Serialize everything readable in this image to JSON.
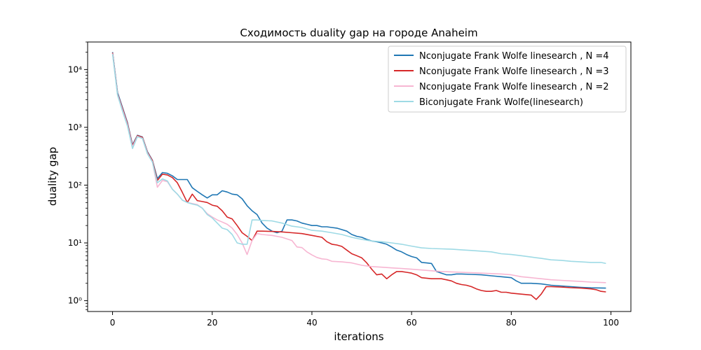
{
  "chart_data": {
    "type": "line",
    "title": "Сходимость duality gap на городе Anaheim",
    "xlabel": "iterations",
    "ylabel": "duality gap",
    "xlim": [
      -5,
      104
    ],
    "ylim": [
      0.65,
      30000
    ],
    "yscale": "log",
    "xticks": [
      0,
      20,
      40,
      60,
      80,
      100
    ],
    "yticks": [
      1,
      10,
      100,
      1000,
      10000
    ],
    "yticklabels": [
      "10⁰",
      "10¹",
      "10²",
      "10³",
      "10⁴"
    ],
    "legend_position": "top-right",
    "grid": false,
    "series": [
      {
        "name": "Nconjugate Frank Wolfe linesearch , N =4",
        "color": "#1f77b4",
        "points": [
          [
            0,
            20000
          ],
          [
            1,
            4000
          ],
          [
            2,
            2200
          ],
          [
            3,
            1200
          ],
          [
            4,
            500
          ],
          [
            5,
            730
          ],
          [
            6,
            680
          ],
          [
            7,
            380
          ],
          [
            8,
            270
          ],
          [
            9,
            130
          ],
          [
            10,
            165
          ],
          [
            11,
            160
          ],
          [
            12,
            145
          ],
          [
            13,
            125
          ],
          [
            14,
            125
          ],
          [
            15,
            125
          ],
          [
            16,
            90
          ],
          [
            17,
            78
          ],
          [
            18,
            68
          ],
          [
            19,
            60
          ],
          [
            20,
            68
          ],
          [
            21,
            68
          ],
          [
            22,
            80
          ],
          [
            23,
            76
          ],
          [
            24,
            70
          ],
          [
            25,
            68
          ],
          [
            26,
            58
          ],
          [
            27,
            44
          ],
          [
            28,
            36
          ],
          [
            29,
            31
          ],
          [
            30,
            22
          ],
          [
            31,
            18
          ],
          [
            32,
            16
          ],
          [
            33,
            15
          ],
          [
            34,
            16
          ],
          [
            35,
            25
          ],
          [
            36,
            25
          ],
          [
            37,
            24
          ],
          [
            38,
            22
          ],
          [
            39,
            21
          ],
          [
            40,
            20
          ],
          [
            41,
            20
          ],
          [
            42,
            19
          ],
          [
            43,
            19
          ],
          [
            44,
            18.5
          ],
          [
            45,
            18
          ],
          [
            46,
            17
          ],
          [
            47,
            16
          ],
          [
            48,
            14
          ],
          [
            49,
            13
          ],
          [
            50,
            12.5
          ],
          [
            51,
            11.5
          ],
          [
            52,
            10.8
          ],
          [
            53,
            10.5
          ],
          [
            54,
            10
          ],
          [
            55,
            9.5
          ],
          [
            56,
            8.5
          ],
          [
            57,
            7.5
          ],
          [
            58,
            7
          ],
          [
            59,
            6.3
          ],
          [
            60,
            5.8
          ],
          [
            61,
            5.5
          ],
          [
            62,
            4.6
          ],
          [
            63,
            4.5
          ],
          [
            64,
            4.4
          ],
          [
            65,
            3.2
          ],
          [
            66,
            3
          ],
          [
            67,
            2.8
          ],
          [
            68,
            2.8
          ],
          [
            69,
            2.9
          ],
          [
            70,
            2.9
          ],
          [
            72,
            2.85
          ],
          [
            74,
            2.8
          ],
          [
            76,
            2.7
          ],
          [
            78,
            2.6
          ],
          [
            80,
            2.5
          ],
          [
            81,
            2.2
          ],
          [
            82,
            2
          ],
          [
            84,
            2
          ],
          [
            86,
            1.95
          ],
          [
            88,
            1.85
          ],
          [
            90,
            1.8
          ],
          [
            92,
            1.75
          ],
          [
            94,
            1.7
          ],
          [
            96,
            1.67
          ],
          [
            99,
            1.65
          ]
        ]
      },
      {
        "name": "Nconjugate Frank Wolfe linesearch , N =3",
        "color": "#d62728",
        "points": [
          [
            0,
            19500
          ],
          [
            1,
            3800
          ],
          [
            2,
            2100
          ],
          [
            3,
            1150
          ],
          [
            4,
            480
          ],
          [
            5,
            720
          ],
          [
            6,
            670
          ],
          [
            7,
            370
          ],
          [
            8,
            265
          ],
          [
            9,
            120
          ],
          [
            10,
            155
          ],
          [
            11,
            150
          ],
          [
            12,
            135
          ],
          [
            13,
            110
          ],
          [
            14,
            75
          ],
          [
            15,
            50
          ],
          [
            16,
            70
          ],
          [
            17,
            54
          ],
          [
            18,
            52
          ],
          [
            19,
            50
          ],
          [
            20,
            45
          ],
          [
            21,
            43
          ],
          [
            22,
            36
          ],
          [
            23,
            28
          ],
          [
            24,
            26
          ],
          [
            25,
            20
          ],
          [
            26,
            15
          ],
          [
            27,
            13
          ],
          [
            28,
            11
          ],
          [
            29,
            16
          ],
          [
            30,
            16
          ],
          [
            32,
            15.8
          ],
          [
            34,
            15.5
          ],
          [
            36,
            15
          ],
          [
            38,
            14.5
          ],
          [
            40,
            13.5
          ],
          [
            42,
            12.5
          ],
          [
            43,
            10.5
          ],
          [
            44,
            9.5
          ],
          [
            45,
            9.2
          ],
          [
            46,
            8.7
          ],
          [
            47,
            7.5
          ],
          [
            48,
            6.5
          ],
          [
            49,
            6
          ],
          [
            50,
            5.5
          ],
          [
            51,
            4.5
          ],
          [
            52,
            3.5
          ],
          [
            53,
            2.8
          ],
          [
            54,
            2.9
          ],
          [
            55,
            2.4
          ],
          [
            56,
            2.8
          ],
          [
            57,
            3.2
          ],
          [
            58,
            3.2
          ],
          [
            59,
            3.1
          ],
          [
            60,
            3
          ],
          [
            61,
            2.8
          ],
          [
            62,
            2.5
          ],
          [
            63,
            2.45
          ],
          [
            64,
            2.4
          ],
          [
            66,
            2.4
          ],
          [
            67,
            2.3
          ],
          [
            68,
            2.2
          ],
          [
            69,
            2
          ],
          [
            70,
            1.9
          ],
          [
            71,
            1.85
          ],
          [
            72,
            1.75
          ],
          [
            73,
            1.6
          ],
          [
            74,
            1.5
          ],
          [
            75,
            1.45
          ],
          [
            76,
            1.45
          ],
          [
            77,
            1.5
          ],
          [
            78,
            1.4
          ],
          [
            79,
            1.4
          ],
          [
            80,
            1.35
          ],
          [
            82,
            1.3
          ],
          [
            84,
            1.25
          ],
          [
            85,
            1.05
          ],
          [
            86,
            1.3
          ],
          [
            87,
            1.75
          ],
          [
            88,
            1.75
          ],
          [
            90,
            1.72
          ],
          [
            92,
            1.68
          ],
          [
            94,
            1.65
          ],
          [
            96,
            1.6
          ],
          [
            97,
            1.55
          ],
          [
            98,
            1.45
          ],
          [
            99,
            1.42
          ]
        ]
      },
      {
        "name": "Nconjugate Frank Wolfe linesearch , N =2",
        "color": "#f7b6d2",
        "points": [
          [
            0,
            19000
          ],
          [
            1,
            3700
          ],
          [
            2,
            2000
          ],
          [
            3,
            1100
          ],
          [
            4,
            460
          ],
          [
            5,
            700
          ],
          [
            6,
            650
          ],
          [
            7,
            360
          ],
          [
            8,
            255
          ],
          [
            9,
            92
          ],
          [
            10,
            120
          ],
          [
            11,
            115
          ],
          [
            12,
            85
          ],
          [
            13,
            70
          ],
          [
            14,
            55
          ],
          [
            15,
            50
          ],
          [
            16,
            48
          ],
          [
            17,
            46
          ],
          [
            18,
            40
          ],
          [
            19,
            32
          ],
          [
            20,
            28
          ],
          [
            21,
            25
          ],
          [
            22,
            23
          ],
          [
            23,
            21
          ],
          [
            24,
            18
          ],
          [
            25,
            14
          ],
          [
            26,
            10
          ],
          [
            27,
            6.3
          ],
          [
            28,
            11
          ],
          [
            29,
            14.5
          ],
          [
            30,
            14
          ],
          [
            32,
            13.5
          ],
          [
            34,
            12.5
          ],
          [
            36,
            11
          ],
          [
            37,
            8.5
          ],
          [
            38,
            8.3
          ],
          [
            39,
            7
          ],
          [
            40,
            6.2
          ],
          [
            41,
            5.6
          ],
          [
            42,
            5.3
          ],
          [
            43,
            5.2
          ],
          [
            44,
            4.8
          ],
          [
            46,
            4.7
          ],
          [
            48,
            4.5
          ],
          [
            50,
            4.1
          ],
          [
            52,
            3.9
          ],
          [
            54,
            3.8
          ],
          [
            56,
            3.7
          ],
          [
            58,
            3.6
          ],
          [
            60,
            3.5
          ],
          [
            62,
            3.4
          ],
          [
            64,
            3.3
          ],
          [
            66,
            3.2
          ],
          [
            68,
            3.15
          ],
          [
            70,
            3.1
          ],
          [
            72,
            3.05
          ],
          [
            74,
            3
          ],
          [
            76,
            2.95
          ],
          [
            78,
            2.9
          ],
          [
            80,
            2.8
          ],
          [
            82,
            2.6
          ],
          [
            84,
            2.5
          ],
          [
            86,
            2.4
          ],
          [
            88,
            2.3
          ],
          [
            90,
            2.25
          ],
          [
            92,
            2.2
          ],
          [
            94,
            2.15
          ],
          [
            96,
            2.1
          ],
          [
            99,
            2.05
          ]
        ]
      },
      {
        "name": "Biconjugate Frank Wolfe(linesearch)",
        "color": "#9edae5",
        "points": [
          [
            0,
            18500
          ],
          [
            1,
            3600
          ],
          [
            2,
            1900
          ],
          [
            3,
            1050
          ],
          [
            4,
            430
          ],
          [
            5,
            690
          ],
          [
            6,
            640
          ],
          [
            7,
            350
          ],
          [
            8,
            250
          ],
          [
            9,
            110
          ],
          [
            10,
            128
          ],
          [
            11,
            118
          ],
          [
            12,
            85
          ],
          [
            13,
            70
          ],
          [
            14,
            55
          ],
          [
            15,
            50
          ],
          [
            16,
            47
          ],
          [
            17,
            45
          ],
          [
            18,
            40
          ],
          [
            19,
            31
          ],
          [
            20,
            27
          ],
          [
            21,
            22
          ],
          [
            22,
            18
          ],
          [
            23,
            17
          ],
          [
            24,
            14
          ],
          [
            25,
            10
          ],
          [
            26,
            9.5
          ],
          [
            27,
            9.5
          ],
          [
            28,
            25
          ],
          [
            29,
            25
          ],
          [
            30,
            24.5
          ],
          [
            32,
            24
          ],
          [
            34,
            22
          ],
          [
            36,
            19.5
          ],
          [
            38,
            18.5
          ],
          [
            40,
            16.5
          ],
          [
            42,
            16
          ],
          [
            44,
            15
          ],
          [
            46,
            14
          ],
          [
            48,
            12.5
          ],
          [
            50,
            11.5
          ],
          [
            52,
            10.8
          ],
          [
            54,
            10.5
          ],
          [
            56,
            10
          ],
          [
            58,
            9.5
          ],
          [
            60,
            8.8
          ],
          [
            62,
            8.2
          ],
          [
            64,
            8
          ],
          [
            66,
            7.9
          ],
          [
            68,
            7.8
          ],
          [
            70,
            7.6
          ],
          [
            72,
            7.4
          ],
          [
            74,
            7.2
          ],
          [
            76,
            7
          ],
          [
            78,
            6.5
          ],
          [
            80,
            6.3
          ],
          [
            82,
            6
          ],
          [
            84,
            5.7
          ],
          [
            86,
            5.4
          ],
          [
            88,
            5.1
          ],
          [
            90,
            5
          ],
          [
            92,
            4.8
          ],
          [
            94,
            4.7
          ],
          [
            96,
            4.6
          ],
          [
            98,
            4.6
          ],
          [
            99,
            4.4
          ]
        ]
      }
    ]
  }
}
